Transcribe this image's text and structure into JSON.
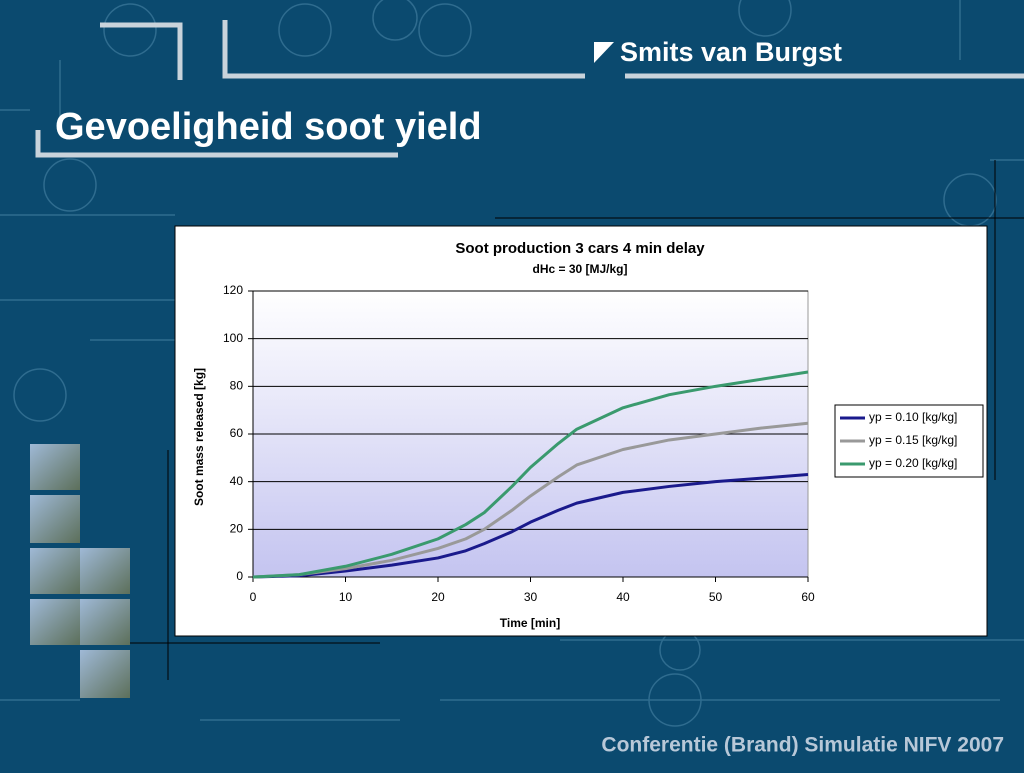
{
  "slide": {
    "logo": "Smits van Burgst",
    "title": "Gevoeligheid soot yield",
    "footer": "Conferentie (Brand) Simulatie NIFV 2007"
  },
  "chart_data": {
    "type": "line",
    "title": "Soot production 3 cars 4 min delay",
    "subtitle": "dHc = 30 [MJ/kg]",
    "x_label": "Time [min]",
    "y_label": "Soot mass released [kg]",
    "x": [
      0,
      5,
      10,
      15,
      20,
      23,
      25,
      28,
      30,
      33,
      35,
      40,
      45,
      50,
      55,
      60
    ],
    "series": [
      {
        "name": "yp = 0.10 [kg/kg]",
        "color": "#1a1a8c",
        "values": [
          0,
          0.5,
          2.5,
          5,
          8,
          11,
          14,
          19,
          23,
          28,
          31,
          35.5,
          38,
          40,
          41.5,
          43
        ]
      },
      {
        "name": "yp = 0.15 [kg/kg]",
        "color": "#999999",
        "values": [
          0,
          1,
          3.5,
          7,
          12,
          16,
          20,
          28,
          34,
          42,
          47,
          53.5,
          57.5,
          60,
          62.5,
          64.5
        ]
      },
      {
        "name": "yp = 0.20 [kg/kg]",
        "color": "#3a9a6e",
        "values": [
          0,
          1,
          4.5,
          9.5,
          16,
          22,
          27,
          38,
          46,
          56,
          62,
          71,
          76.5,
          80,
          83,
          86
        ]
      }
    ],
    "xlim": [
      0,
      60
    ],
    "xticks": [
      0,
      10,
      20,
      30,
      40,
      50,
      60
    ],
    "ylim": [
      0,
      120
    ],
    "yticks": [
      0,
      20,
      40,
      60,
      80,
      100,
      120
    ],
    "grid": true,
    "legend": "right"
  }
}
